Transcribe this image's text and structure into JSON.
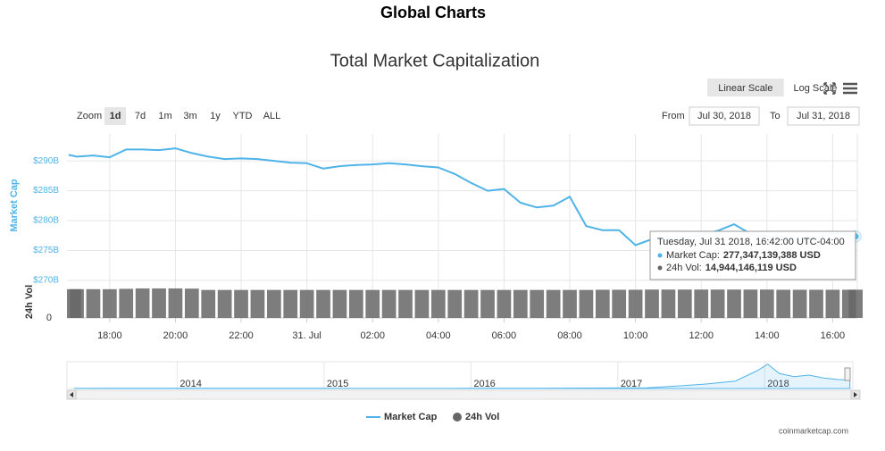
{
  "page_title": "Global Charts",
  "chart_data": {
    "type": "line",
    "title": "Total Market Capitalization",
    "controls": {
      "scale_buttons": [
        "Linear Scale",
        "Log Scale"
      ],
      "active_scale": "Linear Scale",
      "zoom_label": "Zoom",
      "zoom_buttons": [
        "1d",
        "7d",
        "1m",
        "3m",
        "1y",
        "YTD",
        "ALL"
      ],
      "active_zoom": "1d",
      "from_label": "From",
      "from": "Jul 30, 2018",
      "to_label": "To",
      "to": "Jul 31, 2018"
    },
    "y_label": "Market Cap",
    "y2_label": "24h Vol",
    "x": [
      16.75,
      17,
      17.5,
      18,
      18.5,
      19,
      19.5,
      20,
      20.5,
      21,
      21.5,
      22,
      22.5,
      23,
      23.5,
      24,
      24.5,
      25,
      25.5,
      26,
      26.5,
      27,
      27.5,
      28,
      28.5,
      29,
      29.5,
      30,
      30.5,
      31,
      31.5,
      32,
      32.5,
      33,
      33.5,
      34,
      34.5,
      35,
      35.5,
      36,
      36.5,
      37,
      37.5,
      38,
      38.5,
      39,
      39.5,
      40,
      40.5,
      40.7
    ],
    "series": [
      {
        "name": "Market Cap",
        "color": "#4fb3e8",
        "values": [
          291.0,
          290.7,
          290.9,
          290.6,
          291.9,
          291.9,
          291.8,
          292.1,
          291.3,
          290.7,
          290.3,
          290.4,
          290.3,
          290.0,
          289.7,
          289.6,
          288.7,
          289.1,
          289.3,
          289.4,
          289.6,
          289.4,
          289.1,
          288.9,
          287.8,
          286.3,
          285.0,
          285.3,
          283.0,
          282.2,
          282.5,
          284.0,
          279.1,
          278.4,
          278.4,
          275.9,
          276.9,
          277.0,
          277.2,
          277.6,
          278.3,
          279.4,
          277.8,
          277.3,
          277.1,
          276.9,
          277.3,
          277.8,
          277.6,
          277.35
        ]
      },
      {
        "name": "24h Vol",
        "color": "#666666",
        "axis": "y2",
        "values": [
          15.2,
          15.2,
          15.2,
          15.2,
          15.4,
          15.6,
          15.6,
          15.6,
          15.5,
          14.8,
          14.8,
          14.8,
          14.8,
          14.8,
          14.8,
          14.8,
          14.8,
          14.8,
          14.8,
          14.8,
          14.8,
          14.8,
          14.8,
          14.8,
          14.8,
          14.8,
          14.8,
          14.8,
          14.8,
          14.8,
          14.8,
          14.8,
          14.8,
          14.9,
          14.9,
          14.9,
          15.0,
          15.0,
          15.0,
          15.0,
          15.0,
          15.0,
          15.0,
          15.0,
          14.9,
          14.9,
          14.9,
          14.9,
          14.9,
          14.94
        ]
      }
    ],
    "xlim": [
      16.7,
      40.75
    ],
    "xticks": [
      {
        "value": 18,
        "label": "18:00"
      },
      {
        "value": 20,
        "label": "20:00"
      },
      {
        "value": 22,
        "label": "22:00"
      },
      {
        "value": 24,
        "label": "31. Jul"
      },
      {
        "value": 26,
        "label": "02:00"
      },
      {
        "value": 28,
        "label": "04:00"
      },
      {
        "value": 30,
        "label": "06:00"
      },
      {
        "value": 32,
        "label": "08:00"
      },
      {
        "value": 34,
        "label": "10:00"
      },
      {
        "value": 36,
        "label": "12:00"
      },
      {
        "value": 38,
        "label": "14:00"
      },
      {
        "value": 40,
        "label": "16:00"
      }
    ],
    "ylim": [
      270,
      294.5
    ],
    "yticks": [
      {
        "value": 270,
        "label": "$270B"
      },
      {
        "value": 275,
        "label": "$275B"
      },
      {
        "value": 280,
        "label": "$280B"
      },
      {
        "value": 285,
        "label": "$285B"
      },
      {
        "value": 290,
        "label": "$290B"
      }
    ],
    "y2lim": [
      0,
      17
    ],
    "y2ticks": [
      0
    ],
    "grid": true,
    "tooltip": {
      "header": "Tuesday, Jul 31 2018, 16:42:00 UTC-04:00",
      "rows": [
        {
          "label": "Market Cap:",
          "value": "277,347,139,388 USD"
        },
        {
          "label": "24h Vol:",
          "value": "14,944,146,119 USD"
        }
      ]
    },
    "navigator": {
      "x": [
        2013.3,
        2013.6,
        2014,
        2014.5,
        2015,
        2015.5,
        2016,
        2016.5,
        2017,
        2017.2,
        2017.4,
        2017.6,
        2017.8,
        2017.95,
        2018.02,
        2018.1,
        2018.2,
        2018.3,
        2018.4,
        2018.5,
        2018.58
      ],
      "values": [
        3,
        8,
        10,
        6,
        5,
        4,
        7,
        10,
        18,
        25,
        80,
        150,
        250,
        600,
        820,
        500,
        400,
        450,
        350,
        300,
        280
      ],
      "xlim": [
        2013.25,
        2018.6
      ],
      "ylim": [
        0,
        900
      ],
      "xticks": [
        2014,
        2015,
        2016,
        2017,
        2018
      ]
    },
    "credit": "coinmarketcap.com"
  }
}
